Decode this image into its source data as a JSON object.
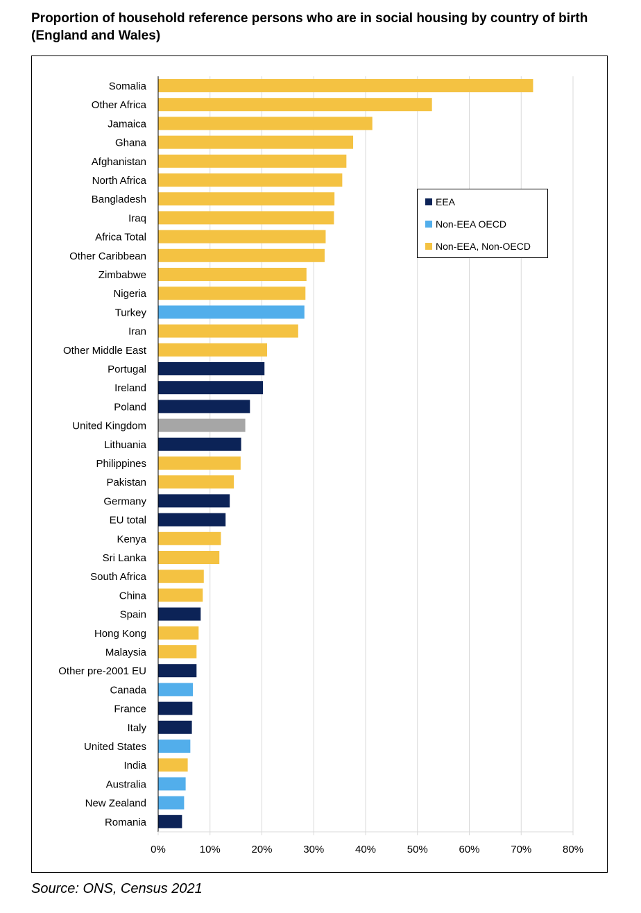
{
  "title": "Proportion of household reference persons who are in social housing by country of birth (England and Wales)",
  "source": "Source: ONS, Census 2021",
  "colors": {
    "EEA": "#0c2357",
    "Non-EEA OECD": "#52aeeb",
    "Non-EEA, Non-OECD": "#f4c242",
    "UK": "#a6a6a6",
    "grid": "#d9d9d9",
    "axis": "#000000"
  },
  "legend": [
    {
      "label": "EEA",
      "group": "EEA"
    },
    {
      "label": "Non-EEA OECD",
      "group": "Non-EEA OECD"
    },
    {
      "label": "Non-EEA, Non-OECD",
      "group": "Non-EEA, Non-OECD"
    }
  ],
  "chart_data": {
    "type": "bar",
    "orientation": "horizontal",
    "title": "Proportion of household reference persons who are in social housing by country of birth (England and Wales)",
    "xlabel": "",
    "ylabel": "",
    "xlim": [
      0,
      80
    ],
    "xticks": [
      0,
      10,
      20,
      30,
      40,
      50,
      60,
      70,
      80
    ],
    "tick_suffix": "%",
    "grid": "vertical",
    "legend_position": "upper-right",
    "categories": [
      "Somalia",
      "Other Africa",
      "Jamaica",
      "Ghana",
      "Afghanistan",
      "North Africa",
      "Bangladesh",
      "Iraq",
      "Africa Total",
      "Other Caribbean",
      "Zimbabwe",
      "Nigeria",
      "Turkey",
      "Iran",
      "Other Middle East",
      "Portugal",
      "Ireland",
      "Poland",
      "United Kingdom",
      "Lithuania",
      "Philippines",
      "Pakistan",
      "Germany",
      "EU total",
      "Kenya",
      "Sri Lanka",
      "South Africa",
      "China",
      "Spain",
      "Hong Kong",
      "Malaysia",
      "Other pre-2001 EU",
      "Canada",
      "France",
      "Italy",
      "United States",
      "India",
      "Australia",
      "New Zealand",
      "Romania"
    ],
    "values": [
      72.3,
      52.8,
      41.3,
      37.6,
      36.3,
      35.5,
      34.0,
      33.9,
      32.3,
      32.1,
      28.6,
      28.4,
      28.2,
      27.0,
      21.0,
      20.5,
      20.2,
      17.7,
      16.8,
      16.0,
      15.9,
      14.6,
      13.8,
      13.0,
      12.1,
      11.8,
      8.8,
      8.6,
      8.2,
      7.8,
      7.4,
      7.4,
      6.7,
      6.6,
      6.5,
      6.2,
      5.7,
      5.3,
      5.0,
      4.6
    ],
    "groups": [
      "Non-EEA, Non-OECD",
      "Non-EEA, Non-OECD",
      "Non-EEA, Non-OECD",
      "Non-EEA, Non-OECD",
      "Non-EEA, Non-OECD",
      "Non-EEA, Non-OECD",
      "Non-EEA, Non-OECD",
      "Non-EEA, Non-OECD",
      "Non-EEA, Non-OECD",
      "Non-EEA, Non-OECD",
      "Non-EEA, Non-OECD",
      "Non-EEA, Non-OECD",
      "Non-EEA OECD",
      "Non-EEA, Non-OECD",
      "Non-EEA, Non-OECD",
      "EEA",
      "EEA",
      "EEA",
      "UK",
      "EEA",
      "Non-EEA, Non-OECD",
      "Non-EEA, Non-OECD",
      "EEA",
      "EEA",
      "Non-EEA, Non-OECD",
      "Non-EEA, Non-OECD",
      "Non-EEA, Non-OECD",
      "Non-EEA, Non-OECD",
      "EEA",
      "Non-EEA, Non-OECD",
      "Non-EEA, Non-OECD",
      "EEA",
      "Non-EEA OECD",
      "EEA",
      "EEA",
      "Non-EEA OECD",
      "Non-EEA, Non-OECD",
      "Non-EEA OECD",
      "Non-EEA OECD",
      "EEA"
    ]
  }
}
